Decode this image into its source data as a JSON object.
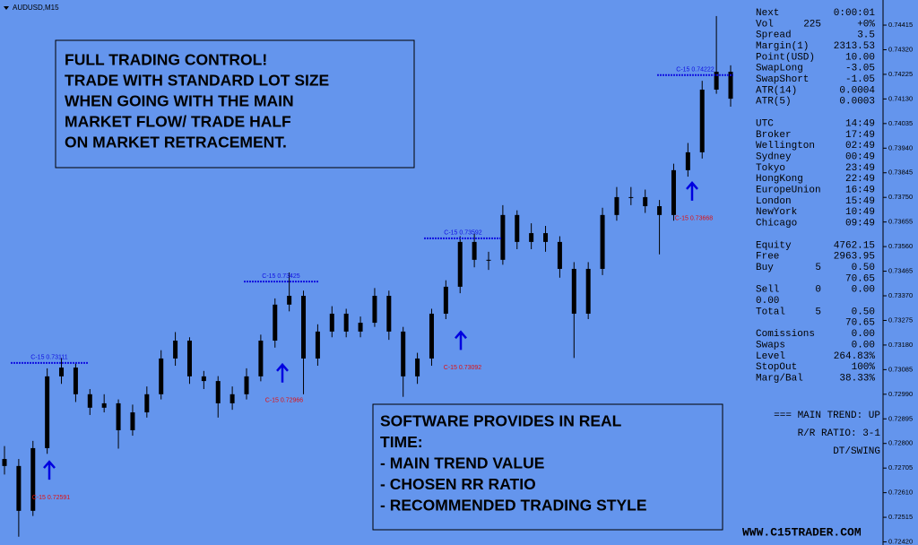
{
  "chart_data": {
    "type": "candlestick",
    "title": "AUDUSD,M15",
    "ylim": [
      0.72408,
      0.74512
    ],
    "yticks": [
      0.74415,
      {
        "value": 0.7432,
        "label": "0.74320"
      },
      0.74225,
      {
        "value": 0.7413,
        "label": "0.74130"
      },
      0.74035,
      {
        "value": 0.7394,
        "label": "0.73940"
      },
      0.73845,
      {
        "value": 0.7375,
        "label": "0.73750"
      },
      0.73655,
      {
        "value": 0.7356,
        "label": "0.73560"
      },
      0.73465,
      {
        "value": 0.7337,
        "label": "0.73370"
      },
      0.73275,
      {
        "value": 0.7318,
        "label": "0.73180"
      },
      0.73085,
      {
        "value": 0.7299,
        "label": "0.72990"
      },
      0.72895,
      {
        "value": 0.728,
        "label": "0.72800"
      },
      0.72705,
      {
        "value": 0.7261,
        "label": "0.72610"
      },
      0.72515,
      {
        "value": 0.7242,
        "label": "0.72420"
      }
    ],
    "color": "#000000",
    "open": [
      0.7274,
      0.72713,
      0.7254,
      0.72782,
      0.73059,
      0.73093,
      0.7299,
      0.72938,
      0.72955,
      0.72851,
      0.7292,
      0.7299,
      0.73128,
      0.73197,
      0.73059,
      0.73041,
      0.72955,
      0.7299,
      0.73059,
      0.73197,
      0.73336,
      0.7337,
      0.73128,
      0.73232,
      0.73301,
      0.73232,
      0.73266,
      0.7337,
      0.73232,
      0.73059,
      0.73128,
      0.73301,
      0.73405,
      0.73578,
      0.73509,
      0.73509,
      0.73682,
      0.73578,
      0.73612,
      0.73578,
      0.73474,
      0.73301,
      0.73474,
      0.73682,
      0.73751,
      0.73751,
      0.73716,
      0.73682,
      0.73855,
      0.73924,
      0.74166,
      0.74235
    ],
    "high": [
      0.7279,
      0.7274,
      0.7281,
      0.7309,
      0.7313,
      0.7311,
      0.7301,
      0.7299,
      0.7297,
      0.7295,
      0.7302,
      0.7316,
      0.7323,
      0.7321,
      0.7308,
      0.7306,
      0.7302,
      0.7309,
      0.7322,
      0.7336,
      0.7346,
      0.7339,
      0.7326,
      0.7333,
      0.7332,
      0.7329,
      0.734,
      0.7339,
      0.7325,
      0.7315,
      0.7332,
      0.7343,
      0.736,
      0.7361,
      0.7354,
      0.7372,
      0.737,
      0.7365,
      0.7364,
      0.736,
      0.735,
      0.735,
      0.7371,
      0.7379,
      0.7379,
      0.7378,
      0.7374,
      0.7388,
      0.7396,
      0.742,
      0.7445,
      0.7426
    ],
    "low": [
      0.7268,
      0.7244,
      0.7252,
      0.7276,
      0.7303,
      0.7296,
      0.7291,
      0.7292,
      0.7278,
      0.7283,
      0.729,
      0.7297,
      0.731,
      0.7303,
      0.7301,
      0.729,
      0.7293,
      0.7297,
      0.7304,
      0.7317,
      0.7331,
      0.7299,
      0.731,
      0.7321,
      0.7321,
      0.7321,
      0.7325,
      0.732,
      0.7298,
      0.7303,
      0.731,
      0.7328,
      0.7338,
      0.7348,
      0.7347,
      0.7349,
      0.7355,
      0.7355,
      0.7354,
      0.7344,
      0.7313,
      0.7328,
      0.7345,
      0.7366,
      0.7372,
      0.7369,
      0.7353,
      0.7366,
      0.7383,
      0.739,
      0.7415,
      0.741
    ],
    "close": [
      0.72713,
      0.7254,
      0.72782,
      0.73059,
      0.73093,
      0.7299,
      0.72938,
      0.72955,
      0.72851,
      0.7292,
      0.7299,
      0.73128,
      0.73197,
      0.73059,
      0.73041,
      0.72955,
      0.7299,
      0.73059,
      0.73197,
      0.73336,
      0.7337,
      0.73128,
      0.73232,
      0.73301,
      0.73232,
      0.73266,
      0.7337,
      0.73232,
      0.73059,
      0.73128,
      0.73301,
      0.73405,
      0.73578,
      0.73509,
      0.73509,
      0.73682,
      0.73578,
      0.73612,
      0.73578,
      0.73474,
      0.73301,
      0.73474,
      0.73682,
      0.73751,
      0.73751,
      0.73716,
      0.73682,
      0.73855,
      0.73924,
      0.74166,
      0.74235,
      0.74131
    ],
    "levels": [
      {
        "label": "C-15 0.73111",
        "value": 0.73111
      },
      {
        "label": "C-15 0.73425",
        "value": 0.73425
      },
      {
        "label": "C-15 0.73592",
        "value": 0.73592
      },
      {
        "label": "C-15 0.74222",
        "value": 0.74222
      }
    ],
    "signals": [
      {
        "label": "C-15 0.72591",
        "value": 0.72591
      },
      {
        "label": "C-15 0.72966",
        "value": 0.72966
      },
      {
        "label": "C-15 0.73092",
        "value": 0.73092
      },
      {
        "label": "C-15 0.73668",
        "value": 0.73668
      }
    ]
  },
  "box_top": [
    "FULL TRADING CONTROL!",
    "TRADE WITH STANDARD LOT SIZE",
    "WHEN GOING WITH THE MAIN",
    "MARKET FLOW/ TRADE HALF",
    "ON MARKET  RETRACEMENT."
  ],
  "box_bottom": [
    "SOFTWARE PROVIDES IN REAL",
    "TIME:",
    "- MAIN TREND VALUE",
    "- CHOSEN RR RATIO",
    "- RECOMMENDED TRADING STYLE"
  ],
  "panel": [
    [
      {
        "cells": [
          "Next",
          "0:00:01"
        ]
      },
      {
        "cells": [
          "Vol",
          "225",
          "+0%"
        ],
        "value_color": "#00b000"
      },
      {
        "cells": [
          "Spread",
          "3.5"
        ]
      },
      {
        "cells": [
          "Margin(1)",
          "2313.53"
        ]
      },
      {
        "cells": [
          "Point(USD)",
          "10.00"
        ]
      },
      {
        "cells": [
          "SwapLong",
          "-3.05"
        ]
      },
      {
        "cells": [
          "SwapShort",
          "-1.05"
        ]
      },
      {
        "cells": [
          "ATR(14)",
          "0.0004"
        ]
      },
      {
        "cells": [
          "ATR(5)",
          "0.0003"
        ]
      }
    ],
    [
      {
        "cells": [
          "UTC",
          "14:49"
        ],
        "color": "#1a1aff"
      },
      {
        "cells": [
          "Broker",
          "17:49"
        ],
        "color": "#1a1aff"
      },
      {
        "cells": [
          "Wellington",
          "02:49"
        ],
        "color": "#1a1aff"
      },
      {
        "cells": [
          "Sydney",
          "00:49"
        ],
        "color": "#1a1aff"
      },
      {
        "cells": [
          "Tokyo",
          "23:49"
        ],
        "color": "#1a1aff"
      },
      {
        "cells": [
          "HongKong",
          "22:49"
        ],
        "color": "#1a1aff"
      },
      {
        "cells": [
          "EuropeUnion",
          "16:49"
        ]
      },
      {
        "cells": [
          "London",
          "15:49"
        ]
      },
      {
        "cells": [
          "NewYork",
          "10:49"
        ]
      },
      {
        "cells": [
          "Chicago",
          "09:49"
        ]
      }
    ],
    [
      {
        "cells": [
          "Equity",
          "4762.15"
        ]
      },
      {
        "cells": [
          "Free",
          "2963.95"
        ]
      },
      {
        "cells": [
          "Buy",
          "5",
          "0.50"
        ]
      },
      {
        "cells": [
          "70.65"
        ],
        "value_color": "#00b000"
      },
      {
        "cells": [
          "Sell",
          "0",
          "0.00"
        ]
      },
      {
        "cells": [
          "0.00"
        ]
      },
      {
        "cells": [
          "Total",
          "5",
          "0.50"
        ]
      },
      {
        "cells": [
          "70.65"
        ],
        "value_color": "#00b000"
      },
      {
        "cells": [
          "Comissions",
          "0.00"
        ]
      },
      {
        "cells": [
          "Swaps",
          "0.00"
        ]
      },
      {
        "cells": [
          "Level",
          "264.83%"
        ]
      },
      {
        "cells": [
          "StopOut",
          "100%"
        ]
      },
      {
        "cells": [
          "Marg/Bal",
          "38.33%"
        ]
      }
    ]
  ],
  "summary": [
    "=== MAIN TREND: UP",
    "R/R RATIO: 3-1",
    "DT/SWING"
  ],
  "website": "WWW.C15TRADER.COM"
}
